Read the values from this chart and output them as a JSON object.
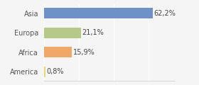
{
  "categories": [
    "America",
    "Africa",
    "Europa",
    "Asia"
  ],
  "values": [
    0.8,
    15.9,
    21.1,
    62.2
  ],
  "labels": [
    "0,8%",
    "15,9%",
    "21,1%",
    "62,2%"
  ],
  "bar_colors": [
    "#e8d870",
    "#f0a868",
    "#b5c98a",
    "#7090c8"
  ],
  "background_color": "#f5f5f5",
  "xlim": [
    0,
    75
  ],
  "label_fontsize": 7,
  "tick_fontsize": 7
}
